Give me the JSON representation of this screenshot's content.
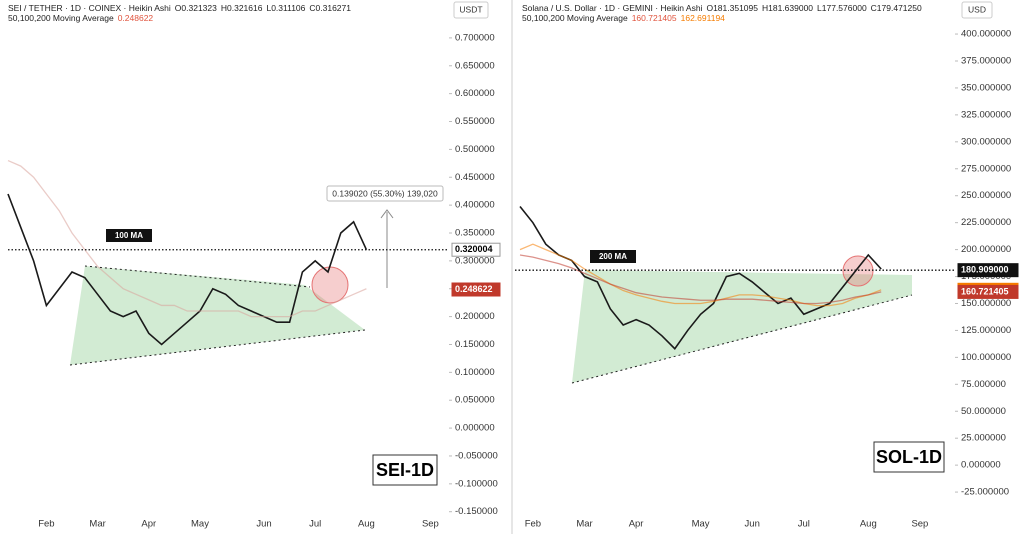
{
  "chart_data": [
    {
      "type": "line",
      "title": "SEI / TETHER · 1D · COINEX · Heikin Ashi",
      "ohlc": [
        "O0.321323",
        "H0.321616",
        "L0.311106",
        "C0.316271"
      ],
      "indicator": "50,100,200 Moving Average",
      "indicator_values": [
        0.248622
      ],
      "indicator_colors": [
        "#e0533d"
      ],
      "currency": "USDT",
      "watermark": "SEI-1D",
      "ma_label": "100 MA",
      "annotation": "0.139020 (55.30%) 139,020",
      "categories": [
        null,
        null,
        null,
        "Feb",
        null,
        null,
        null,
        "Mar",
        null,
        null,
        null,
        "Apr",
        null,
        null,
        null,
        "May",
        null,
        null,
        null,
        null,
        "Jun",
        null,
        null,
        null,
        "Jul",
        null,
        null,
        null,
        "Aug",
        null,
        null,
        null,
        null,
        "Sep"
      ],
      "series": [
        {
          "color": "#1a1a1a",
          "values": [
            0.42,
            0.36,
            0.3,
            0.22,
            0.25,
            0.28,
            0.27,
            0.24,
            0.21,
            0.2,
            0.21,
            0.17,
            0.15,
            0.17,
            0.19,
            0.21,
            0.25,
            0.24,
            0.22,
            0.21,
            0.2,
            0.19,
            0.19,
            0.28,
            0.3,
            0.28,
            0.35,
            0.37,
            0.32,
            null,
            null,
            null,
            null,
            null
          ]
        },
        {
          "color": "#d9a39b",
          "values": [
            0.48,
            0.47,
            0.45,
            0.42,
            0.39,
            0.35,
            0.32,
            0.29,
            0.27,
            0.25,
            0.24,
            0.23,
            0.22,
            0.22,
            0.21,
            0.21,
            0.21,
            0.21,
            0.21,
            0.2,
            0.2,
            0.2,
            0.2,
            0.21,
            0.21,
            0.22,
            0.23,
            0.24,
            0.25,
            null,
            null,
            null,
            null,
            null
          ]
        }
      ],
      "ylim": [
        -0.19,
        0.768
      ],
      "yticks": [
        {
          "value": 0.7,
          "label": "0.700000"
        },
        {
          "value": 0.65,
          "label": "0.650000"
        },
        {
          "value": 0.6,
          "label": "0.600000"
        },
        {
          "value": 0.55,
          "label": "0.550000"
        },
        {
          "value": 0.5,
          "label": "0.500000"
        },
        {
          "value": 0.45,
          "label": "0.450000"
        },
        {
          "value": 0.4,
          "label": "0.400000"
        },
        {
          "value": 0.35,
          "label": "0.350000"
        },
        {
          "value": 0.3,
          "label": "0.300000"
        },
        {
          "value": 0.25,
          "label": "0.250000"
        },
        {
          "value": 0.2,
          "label": "0.200000"
        },
        {
          "value": 0.15,
          "label": "0.150000"
        },
        {
          "value": 0.1,
          "label": "0.100000"
        },
        {
          "value": 0.05,
          "label": "0.050000"
        },
        {
          "value": 0,
          "label": "0.000000"
        },
        {
          "value": -0.05,
          "label": "-0.050000"
        },
        {
          "value": -0.1,
          "label": "-0.100000"
        },
        {
          "value": -0.15,
          "label": "-0.150000"
        }
      ],
      "price_labels": [
        {
          "value": 0.320004,
          "color": "#ffffff",
          "text_color": "#000000"
        },
        {
          "value": 0.248622,
          "color": "#c0392b",
          "text_color": "#ffffff"
        }
      ]
    },
    {
      "type": "line",
      "title": "Solana / U.S. Dollar · 1D · GEMINI · Heikin Ashi",
      "ohlc": [
        "O181.351095",
        "H181.639000",
        "L177.576000",
        "C179.471250"
      ],
      "indicator": "50,100,200 Moving Average",
      "indicator_values": [
        160.721405,
        162.691194
      ],
      "indicator_colors": [
        "#e0533d",
        "#f57c00"
      ],
      "currency": "USD",
      "watermark": "SOL-1D",
      "ma_label": "200 MA",
      "categories": [
        null,
        "Feb",
        null,
        null,
        null,
        "Mar",
        null,
        null,
        null,
        "Apr",
        null,
        null,
        null,
        null,
        "May",
        null,
        null,
        null,
        "Jun",
        null,
        null,
        null,
        "Jul",
        null,
        null,
        null,
        null,
        "Aug",
        null,
        null,
        null,
        "Sep",
        null
      ],
      "series": [
        {
          "color": "#1a1a1a",
          "values": [
            240,
            225,
            205,
            195,
            190,
            175,
            170,
            145,
            130,
            135,
            130,
            120,
            108,
            125,
            140,
            150,
            175,
            178,
            170,
            160,
            150,
            155,
            140,
            145,
            150,
            165,
            180,
            195,
            182,
            null,
            null,
            null,
            null
          ]
        },
        {
          "color": "#f57c00",
          "values": [
            200,
            205,
            200,
            195,
            190,
            182,
            175,
            168,
            162,
            158,
            155,
            152,
            150,
            150,
            150,
            152,
            155,
            158,
            158,
            157,
            155,
            153,
            150,
            148,
            148,
            150,
            155,
            158,
            162.691194,
            null,
            null,
            null,
            null
          ]
        },
        {
          "color": "#c0392b",
          "values": [
            195,
            193,
            190,
            187,
            183,
            178,
            173,
            168,
            164,
            160,
            158,
            156,
            155,
            154,
            153,
            153,
            154,
            154,
            154,
            153,
            152,
            151,
            150,
            150,
            151,
            153,
            156,
            158,
            160.721405,
            null,
            null,
            null,
            null
          ]
        }
      ],
      "ylim": [
        -63.9,
        431.6
      ],
      "yticks": [
        {
          "value": 400,
          "label": "400.000000"
        },
        {
          "value": 375,
          "label": "375.000000"
        },
        {
          "value": 350,
          "label": "350.000000"
        },
        {
          "value": 325,
          "label": "325.000000"
        },
        {
          "value": 300,
          "label": "300.000000"
        },
        {
          "value": 275,
          "label": "275.000000"
        },
        {
          "value": 250,
          "label": "250.000000"
        },
        {
          "value": 225,
          "label": "225.000000"
        },
        {
          "value": 200,
          "label": "200.000000"
        },
        {
          "value": 175,
          "label": "175.000000"
        },
        {
          "value": 150,
          "label": "150.000000"
        },
        {
          "value": 125,
          "label": "125.000000"
        },
        {
          "value": 100,
          "label": "100.000000"
        },
        {
          "value": 75,
          "label": "75.000000"
        },
        {
          "value": 50,
          "label": "50.000000"
        },
        {
          "value": 25,
          "label": "25.000000"
        },
        {
          "value": 0,
          "label": "0.000000"
        },
        {
          "value": -25,
          "label": "-25.000000"
        }
      ],
      "price_labels": [
        {
          "value": 180.909,
          "label": "180.909000",
          "color": "#111111",
          "text_color": "#ffffff"
        },
        {
          "value": 162.691194,
          "color": "#f57c00",
          "text_color": "#ffffff"
        },
        {
          "value": 160.721405,
          "color": "#c0392b",
          "text_color": "#ffffff"
        }
      ]
    }
  ]
}
